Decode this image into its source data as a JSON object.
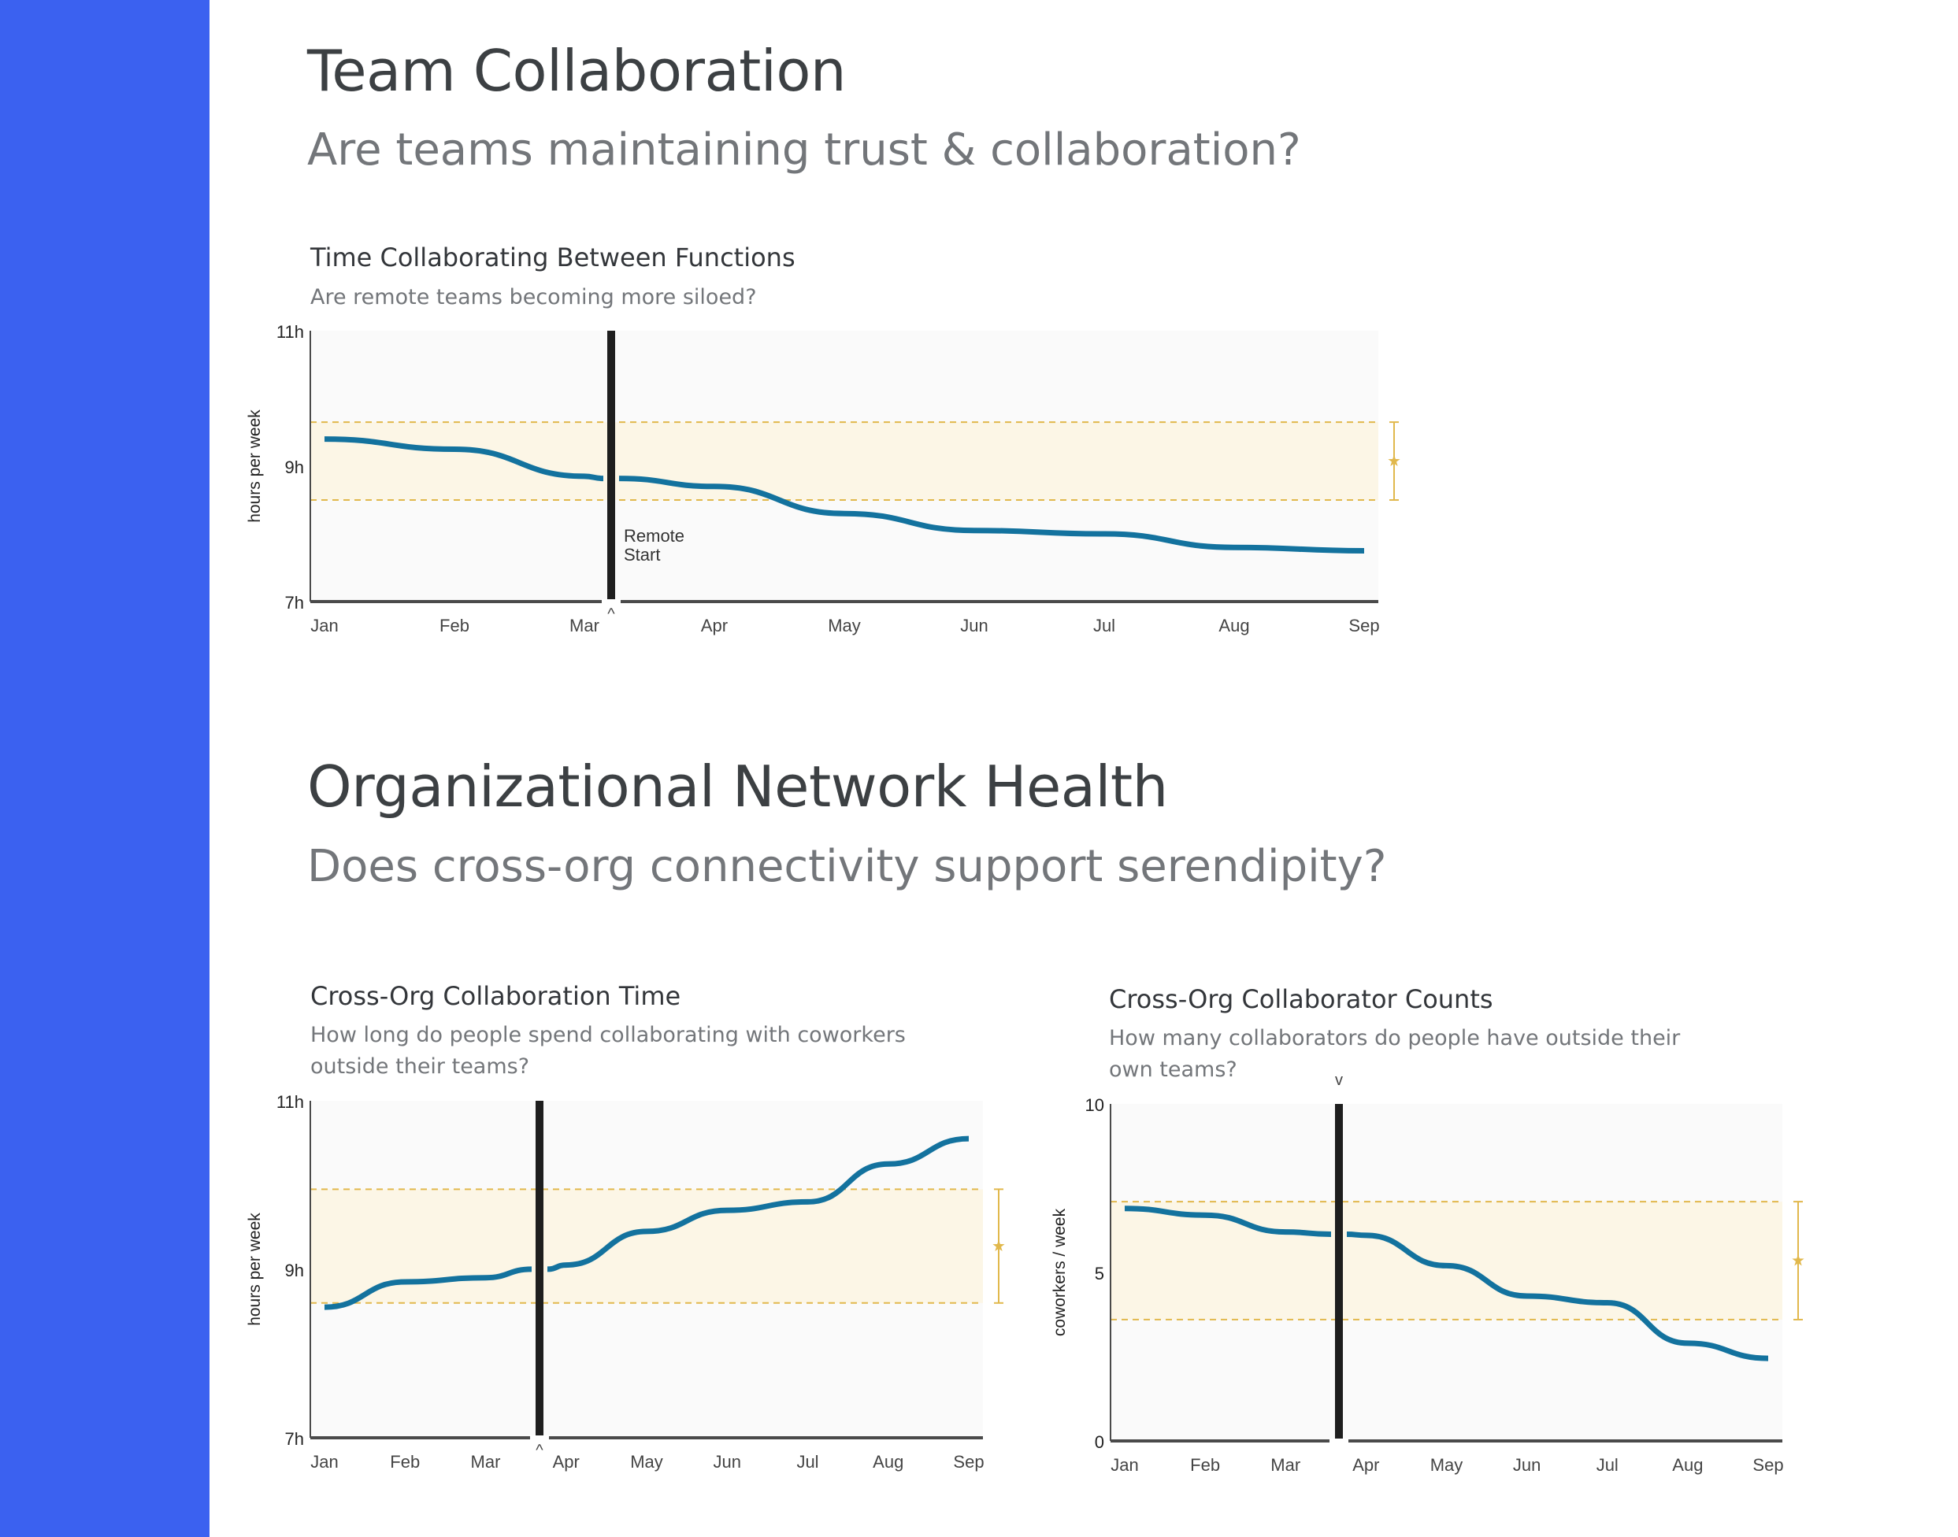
{
  "sections": [
    {
      "title": "Team Collaboration",
      "subtitle": "Are teams maintaining trust & collaboration?"
    },
    {
      "title": "Organizational Network Health",
      "subtitle": "Does cross-org connectivity support serendipity?"
    }
  ],
  "colors": {
    "sidebar": "#3b61f0",
    "line": "#13729e",
    "band_fill": "#fcf6e6",
    "band_dash": "#e1b84c",
    "plot_bg": "#fafafa",
    "marker": "#1e1e1e",
    "axis": "#4a4a4a"
  },
  "chart_data": [
    {
      "type": "line",
      "title": "Time Collaborating Between Functions",
      "subtitle": "Are remote teams becoming more siloed?",
      "ylabel": "hours per week",
      "categories": [
        "Jan",
        "Feb",
        "Mar",
        "Apr",
        "May",
        "Jun",
        "Jul",
        "Aug",
        "Sep"
      ],
      "y_tick_labels": [
        "11h",
        "9h",
        "7h"
      ],
      "ylim": [
        7,
        11
      ],
      "series": [
        {
          "values": [
            9.4,
            9.25,
            8.85,
            8.7,
            8.3,
            8.05,
            8.0,
            7.8,
            7.75
          ]
        }
      ],
      "band": [
        8.5,
        9.65
      ],
      "marker": {
        "label_lines": [
          "Remote",
          "Start"
        ],
        "caret": "^"
      },
      "grid": false
    },
    {
      "type": "line",
      "title": "Cross-Org Collaboration Time",
      "subtitle": "How long do people spend collaborating with coworkers outside their teams?",
      "ylabel": "hours per week",
      "categories": [
        "Jan",
        "Feb",
        "Mar",
        "Apr",
        "May",
        "Jun",
        "Jul",
        "Aug",
        "Sep"
      ],
      "y_tick_labels": [
        "11h",
        "9h",
        "7h"
      ],
      "ylim": [
        7,
        11
      ],
      "series": [
        {
          "values": [
            8.55,
            8.85,
            8.9,
            9.05,
            9.45,
            9.7,
            9.8,
            10.25,
            10.55
          ]
        }
      ],
      "band": [
        8.6,
        9.95
      ],
      "marker": {
        "label_lines": [],
        "caret": "^"
      },
      "grid": false
    },
    {
      "type": "line",
      "title": "Cross-Org Collaborator Counts",
      "subtitle": "How many collaborators do people have outside their own teams?",
      "ylabel": "coworkers / week",
      "categories": [
        "Jan",
        "Feb",
        "Mar",
        "Apr",
        "May",
        "Jun",
        "Jul",
        "Aug",
        "Sep"
      ],
      "y_tick_labels": [
        "10",
        "5",
        "0"
      ],
      "ylim": [
        0,
        10
      ],
      "series": [
        {
          "values": [
            6.9,
            6.7,
            6.2,
            6.1,
            5.2,
            4.3,
            4.1,
            2.9,
            2.45
          ]
        }
      ],
      "band": [
        3.6,
        7.1
      ],
      "marker": {
        "label_lines": [],
        "caret": "v"
      },
      "grid": false
    }
  ]
}
